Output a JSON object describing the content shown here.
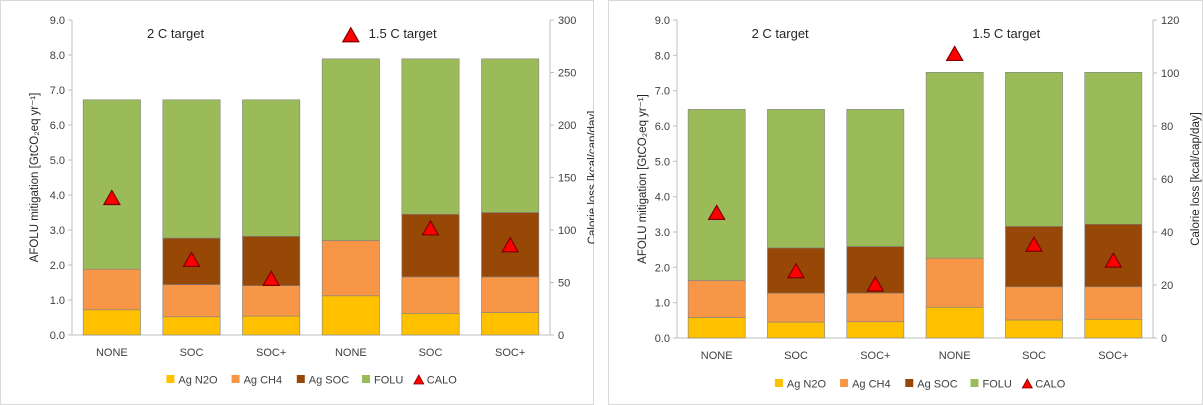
{
  "chart_data": [
    {
      "type": "bar",
      "stacked": true,
      "categories": [
        "NONE",
        "SOC",
        "SOC+",
        "NONE",
        "SOC",
        "SOC+"
      ],
      "group_labels": [
        "2 C target",
        "1.5 C target"
      ],
      "ylabel_left": "AFOLU mitigation [GtCO₂eq yr⁻¹]",
      "ylabel_right": "Calorie loss [kcal/cap/day]",
      "ylim_left": [
        0,
        9
      ],
      "ylim_right": [
        0,
        300
      ],
      "yticks_left": [
        "0.0",
        "1.0",
        "2.0",
        "3.0",
        "4.0",
        "5.0",
        "6.0",
        "7.0",
        "8.0",
        "9.0"
      ],
      "yticks_right": [
        "0",
        "50",
        "100",
        "150",
        "200",
        "250",
        "300"
      ],
      "grid": false,
      "legend_position": "bottom",
      "series": [
        {
          "name": "Ag N2O",
          "color": "#FFC000",
          "values": [
            0.72,
            0.52,
            0.54,
            1.12,
            0.62,
            0.64
          ]
        },
        {
          "name": "Ag CH4",
          "color": "#F79646",
          "values": [
            1.16,
            0.92,
            0.87,
            1.58,
            1.04,
            1.02
          ]
        },
        {
          "name": "Ag SOC",
          "color": "#974706",
          "values": [
            0,
            1.33,
            1.41,
            0,
            1.79,
            1.84
          ]
        },
        {
          "name": "FOLU",
          "color": "#9BBB59",
          "values": [
            4.84,
            3.95,
            3.9,
            5.19,
            4.44,
            4.39
          ]
        }
      ],
      "calo": {
        "name": "CALO",
        "color": "#FF0000",
        "values": [
          130,
          71,
          53,
          285,
          101,
          85
        ]
      }
    },
    {
      "type": "bar",
      "stacked": true,
      "categories": [
        "NONE",
        "SOC",
        "SOC+",
        "NONE",
        "SOC",
        "SOC+"
      ],
      "group_labels": [
        "2 C target",
        "1.5 C target"
      ],
      "ylabel_left": "AFOLU mitigation [GtCO₂eq yr⁻¹]",
      "ylabel_right": "Calorie loss [kcal/cap/day]",
      "ylim_left": [
        0,
        9
      ],
      "ylim_right": [
        0,
        120
      ],
      "yticks_left": [
        "0.0",
        "1.0",
        "2.0",
        "3.0",
        "4.0",
        "5.0",
        "6.0",
        "7.0",
        "8.0",
        "9.0"
      ],
      "yticks_right": [
        "0",
        "20",
        "40",
        "60",
        "80",
        "100",
        "120"
      ],
      "grid": false,
      "legend_position": "bottom",
      "series": [
        {
          "name": "Ag N2O",
          "color": "#FFC000",
          "values": [
            0.58,
            0.45,
            0.46,
            0.87,
            0.51,
            0.53
          ]
        },
        {
          "name": "Ag CH4",
          "color": "#F79646",
          "values": [
            1.05,
            0.82,
            0.81,
            1.39,
            0.94,
            0.92
          ]
        },
        {
          "name": "Ag SOC",
          "color": "#974706",
          "values": [
            0,
            1.28,
            1.32,
            0,
            1.71,
            1.77
          ]
        },
        {
          "name": "FOLU",
          "color": "#9BBB59",
          "values": [
            4.84,
            3.92,
            3.88,
            5.26,
            4.36,
            4.3
          ]
        }
      ],
      "calo": {
        "name": "CALO",
        "color": "#FF0000",
        "values": [
          47,
          25,
          20,
          107,
          35,
          29
        ]
      }
    }
  ]
}
